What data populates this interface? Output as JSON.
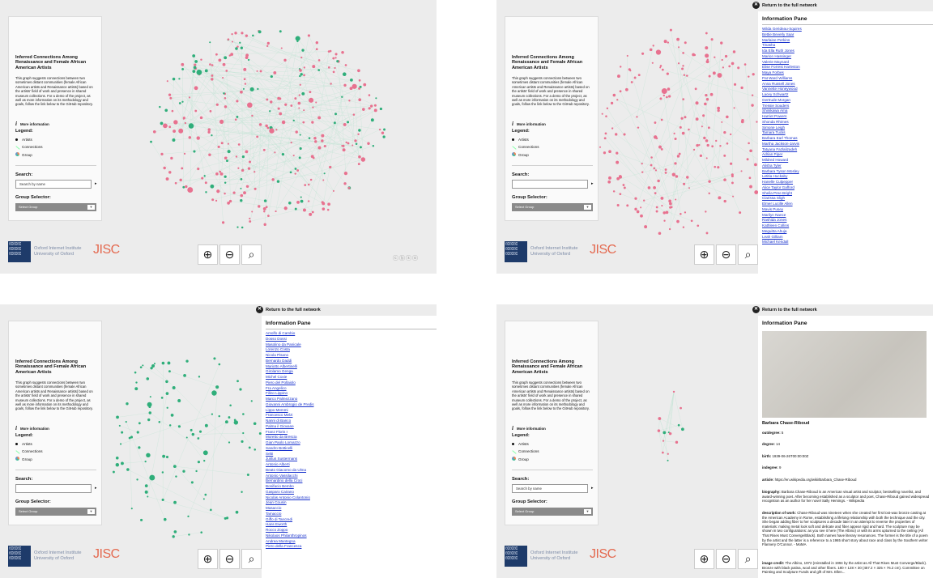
{
  "common": {
    "title": "Inferred Connections Among Renaissance and Female African American Artists",
    "description": "This graph suggests connections between two sometimes distant communities (female African American artists and Renaissance artists) based on the artists' field of work and presence in shared museum collections. For a demo of the project, as well as more information on its methodology and goals, follow the link below to the GitHub repository.",
    "more_info": "More information",
    "legend_title": "Legend:",
    "legend_artists": "Artists",
    "legend_connections": "Connections",
    "legend_group": "Group",
    "search_title": "Search:",
    "search_placeholder": "Search by name",
    "group_selector_title": "Group Selector:",
    "group_selector_value": "Select Group",
    "logo_line1": "Oxford Internet Institute",
    "logo_line2": "University of Oxford",
    "jisc": "JISC",
    "cc": "ⓒⓑⓢⓞ",
    "return_label": "Return to the full network",
    "info_title": "Information Pane"
  },
  "colors": {
    "artist_pink": "#e8718f",
    "artist_green": "#2fae7a",
    "edge": "#bfe3d3",
    "link": "#1a33cc"
  },
  "list_women": [
    "Wilda Gerideau-Squires",
    "Bettie Beverly Saar",
    "Marlaine Perkins",
    "Tinasha",
    "Ida Ella Ruth Jones",
    "Marion Hassinger",
    "Valerie Maynard",
    "Elise Forrest Harleston",
    "Maya Forbes",
    "Pat Ward Williams",
    "Anna Russell Jones",
    "Vannette Honeywood",
    "Lacey Schwartz",
    "Gertrude Morgan",
    "Tressie Souders",
    "Shinikawa Ama",
    "Harriet Powers",
    "Shonda Rhimes",
    "Simone Leigh",
    "Tamara Tucks",
    "Barbara Earl Thomas",
    "Martha Jackson-Jarvis",
    "Tatyana Fazlalizadeh",
    "Adrian Piper",
    "Mildred Howard",
    "Alisha Tyler",
    "Barbara Tyson Mosley",
    "Letitia Huckaby",
    "Hanelle Culpepper",
    "Alice Taylor Gafford",
    "Sheila Pree Bright",
    "Clarissa Sligh",
    "Elmer Lucille Allen",
    "Mavis Pusey",
    "Marilyn Nance",
    "Rashida Jones",
    "Kathleen Collins",
    "Meguitta Ahuja",
    "Leah Gilliam",
    "Michael Kendall"
  ],
  "list_renaissance": [
    "Amolfo di Cambio",
    "Dosso Dossi",
    "Masolino da Panicale",
    "Lorenzo Costa",
    "Nicola Pisano",
    "Bernardo Daddi",
    "Mariotto Albertinelli",
    "Girolamo Genga",
    "Michel Coxie",
    "Piero del Pollaiolo",
    "Fra Angelico",
    "Filino Lippino",
    "Marco Palmezzano",
    "Giovanni Ambrogio de Predis",
    "Lippo Memmi",
    "Francesco Melzi",
    "Nanni di Banco",
    "Palma il Giovane",
    "Franz Floris I",
    "Moretto da Brescia",
    "Gian Paolo Lomazzo",
    "Sandro Botticelli",
    "Sebi",
    "Justus Sustermans",
    "Antonio Alberti",
    "Beato Giacomo da Ulma",
    "Antonio Vassilacchi",
    "Bernardino della Croci",
    "Bonifacio Bembo",
    "Gasparo Cairano",
    "Nicolás Antonio Colantonio",
    "Jean Cousin",
    "Masaccio",
    "Tamaccio",
    "Giffo di Tancredi",
    "Hans Eworth",
    "Rocco Zoppo",
    "Nikolaos Philanthropinos",
    "Andrea Mantegna",
    "Piero della Francesca"
  ],
  "detail": {
    "name": "Barbara Chase-Riboud",
    "outdegree_label": "outdegree:",
    "outdegree": "5",
    "degree_label": "degree:",
    "degree": "14",
    "birth_label": "birth:",
    "birth": "1939-06-26T00:00:00Z",
    "indegree_label": "indegree:",
    "indegree": "9",
    "article_label": "article:",
    "article": "https://en.wikipedia.org/wiki/Barbara_Chase-Riboud",
    "biography_label": "biography:",
    "biography": "Barbara Chase-Riboud is an American visual artist and sculptor, bestselling novelist, and award-winning poet. After becoming established as a sculptor and poet, Chase-Riboud gained widespread recognition as an author for her novel Sally Hemings. - Wikipedia",
    "description_label": "description of work:",
    "description": "Chase-Riboud was nineteen when she created her first lost-wax bronze casting at the American Academy in Rome, establishing a lifelong relationship with both the technique and the city. She began adding fiber to her sculptures a decade later in an attempt to reverse the properties of materials: making metal look soft and delicate and fiber appear rigid and hard. The sculpture may be shown in two configurations: as you see it here (The Albino) or with its arms upturned to the ceiling (All That Rises Must Converge/Black). Both names have literary resonances. The former is the title of a poem by the artist and the latter is a reference to a 1965 short story about race and class by the Southern writer Flannery O'Connor. - MoMA",
    "credit_label": "image credit:",
    "credit": "The Albino, 1972 (reinstalled in 1994 by the artist as All That Rises Must Converge/Black). Bronze with black patina, wool and other fibers. 180 × 128 × 30 (457.2 × 325 × 76.2 cm). Committee on Painting and Sculpture Funds and gift of Mrs. Ellen..."
  }
}
